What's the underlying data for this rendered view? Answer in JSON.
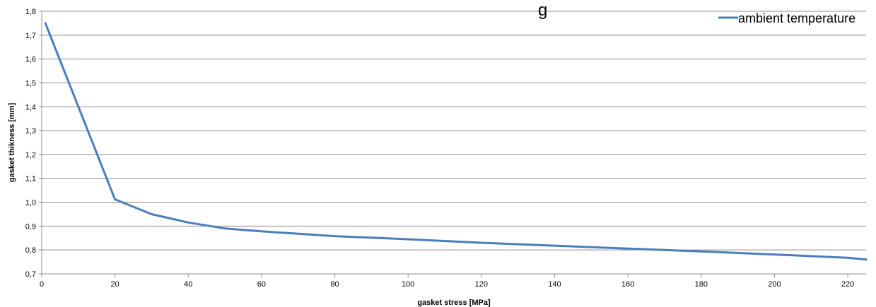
{
  "chart_data": {
    "type": "line",
    "title": "g",
    "xlabel": "gasket stress [MPa]",
    "ylabel": "gasket thikness [mm]",
    "xlim": [
      0,
      225
    ],
    "ylim": [
      0.7,
      1.8
    ],
    "x_ticks": [
      0,
      20,
      40,
      60,
      80,
      100,
      120,
      140,
      160,
      180,
      200,
      220
    ],
    "y_ticks": [
      "0,7",
      "0,8",
      "0,9",
      "1,0",
      "1,1",
      "1,2",
      "1,3",
      "1,4",
      "1,5",
      "1,6",
      "1,7",
      "1,8"
    ],
    "y_tick_values": [
      0.7,
      0.8,
      0.9,
      1.0,
      1.1,
      1.2,
      1.3,
      1.4,
      1.5,
      1.6,
      1.7,
      1.8
    ],
    "grid": "horizontal",
    "legend": "top-right",
    "series": [
      {
        "name": "ambient temperature",
        "color": "#4a7ebb",
        "x": [
          1,
          20,
          30,
          40,
          50,
          60,
          80,
          100,
          120,
          140,
          160,
          180,
          200,
          220,
          225
        ],
        "y": [
          1.75,
          1.012,
          0.95,
          0.915,
          0.89,
          0.878,
          0.858,
          0.845,
          0.83,
          0.818,
          0.806,
          0.794,
          0.781,
          0.767,
          0.76
        ]
      }
    ]
  }
}
